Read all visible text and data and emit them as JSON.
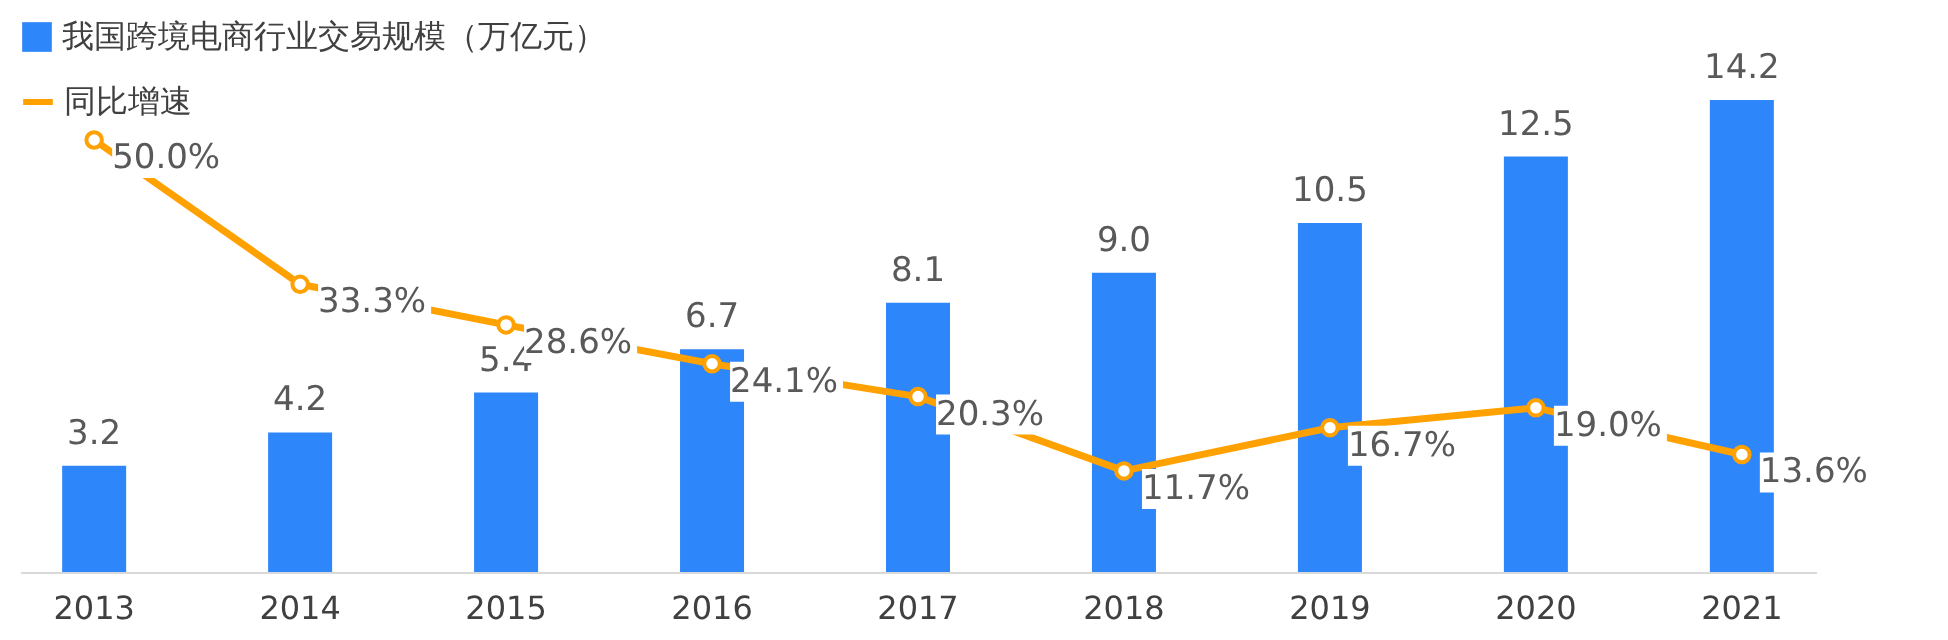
{
  "chart_data": {
    "type": "bar",
    "categories": [
      "2013",
      "2014",
      "2015",
      "2016",
      "2017",
      "2018",
      "2019",
      "2020",
      "2021"
    ],
    "series": [
      {
        "name": "我国跨境电商行业交易规模（万亿元）",
        "color": "#2e86fb",
        "values": [
          3.2,
          4.2,
          5.4,
          6.7,
          8.1,
          9.0,
          10.5,
          12.5,
          14.2
        ],
        "value_labels": [
          "3.2",
          "4.2",
          "5.4",
          "6.7",
          "8.1",
          "9.0",
          "10.5",
          "12.5",
          "14.2"
        ]
      },
      {
        "name": "同比增速",
        "type": "line",
        "axis": "y2",
        "color": "#ffa100",
        "marker": "circle",
        "line_style": "solid",
        "values": [
          50.0,
          33.3,
          28.6,
          24.1,
          20.3,
          11.7,
          16.7,
          19.0,
          13.6
        ],
        "value_labels": [
          "50.0%",
          "33.3%",
          "28.6%",
          "24.1%",
          "20.3%",
          "11.7%",
          "16.7%",
          "19.0%",
          "13.6%"
        ]
      }
    ],
    "tick_labels": "x",
    "grid": false,
    "legend": "top left"
  }
}
